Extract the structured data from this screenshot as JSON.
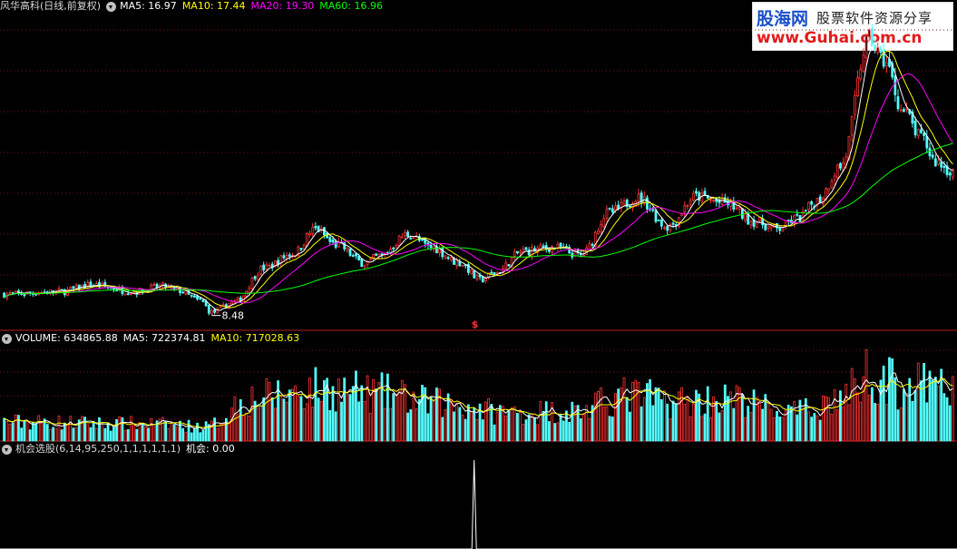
{
  "price_header": {
    "stock": "风华高科(日线,前复权)",
    "ma5": "MA5: 16.97",
    "ma10": "MA10: 17.44",
    "ma20": "MA20: 19.30",
    "ma60": "MA60: 16.96",
    "low_marker": "8.48",
    "signal_marker": "$"
  },
  "volume_header": {
    "volume": "VOLUME: 634865.88",
    "ma5": "MA5: 722374.81",
    "ma10": "MA10: 717028.63"
  },
  "indicator_header": {
    "name": "机会选股(6,14,95,250,1,1,1,1,1,1)",
    "value": "机会: 0.00"
  },
  "watermark": {
    "brand": "股海网",
    "slogan": "股票软件资源分享",
    "url": "www.Guhai.com.cn"
  },
  "colors": {
    "up": "#ff3232",
    "down": "#54ffff",
    "ma5": "#ffffff",
    "ma10": "#ffff00",
    "ma20": "#ff00ff",
    "ma60": "#00ff00",
    "grid": "#7a1010"
  },
  "chart_data": {
    "type": "candlestick",
    "price_anchors": [
      [
        0,
        10.0
      ],
      [
        20,
        10.2
      ],
      [
        30,
        10.7
      ],
      [
        45,
        10.2
      ],
      [
        55,
        10.6
      ],
      [
        60,
        10.3
      ],
      [
        68,
        9.5
      ],
      [
        72,
        8.6
      ],
      [
        80,
        9.4
      ],
      [
        90,
        12.0
      ],
      [
        100,
        13.1
      ],
      [
        108,
        15.0
      ],
      [
        115,
        13.8
      ],
      [
        125,
        12.4
      ],
      [
        130,
        12.9
      ],
      [
        140,
        14.6
      ],
      [
        148,
        13.6
      ],
      [
        158,
        12.4
      ],
      [
        165,
        11.1
      ],
      [
        170,
        11.6
      ],
      [
        180,
        13.3
      ],
      [
        190,
        13.6
      ],
      [
        200,
        13.0
      ],
      [
        210,
        16.3
      ],
      [
        220,
        17.4
      ],
      [
        230,
        15.2
      ],
      [
        240,
        17.5
      ],
      [
        250,
        17.0
      ],
      [
        260,
        15.6
      ],
      [
        268,
        15.0
      ],
      [
        275,
        15.8
      ],
      [
        282,
        17.2
      ],
      [
        290,
        19.8
      ],
      [
        300,
        29.6
      ],
      [
        305,
        28.0
      ],
      [
        312,
        24.0
      ],
      [
        318,
        22.0
      ],
      [
        323,
        20.2
      ],
      [
        328,
        19.5
      ]
    ],
    "volume_anchors": [
      [
        0,
        0.2
      ],
      [
        50,
        0.18
      ],
      [
        70,
        0.15
      ],
      [
        85,
        0.45
      ],
      [
        110,
        0.55
      ],
      [
        130,
        0.5
      ],
      [
        150,
        0.4
      ],
      [
        175,
        0.3
      ],
      [
        200,
        0.32
      ],
      [
        215,
        0.48
      ],
      [
        235,
        0.42
      ],
      [
        250,
        0.44
      ],
      [
        275,
        0.3
      ],
      [
        290,
        0.45
      ],
      [
        300,
        0.72
      ],
      [
        310,
        0.6
      ],
      [
        328,
        0.55
      ]
    ],
    "signal_index": 163,
    "bar_count": 330,
    "price_range": [
      7.5,
      31.5
    ],
    "ma_periods": [
      5,
      10,
      20,
      60
    ]
  }
}
